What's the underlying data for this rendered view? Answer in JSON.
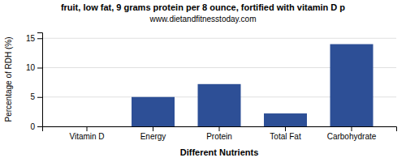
{
  "chart_data": {
    "type": "bar",
    "title": "fruit, low fat, 9 grams protein per 8 ounce, fortified with vitamin D p",
    "subtitle": "www.dietandfitnesstoday.com",
    "xlabel": "Different Nutrients",
    "ylabel": "Percentage of RDH (%)",
    "categories": [
      "Vitamin D",
      "Energy",
      "Protein",
      "Total Fat",
      "Carbohydrate"
    ],
    "values": [
      0,
      5,
      7.2,
      2.2,
      14
    ],
    "color": "#2d4f96",
    "ylim": [
      0,
      16
    ],
    "yticks": [
      0,
      5,
      10,
      15
    ],
    "grid": true
  }
}
